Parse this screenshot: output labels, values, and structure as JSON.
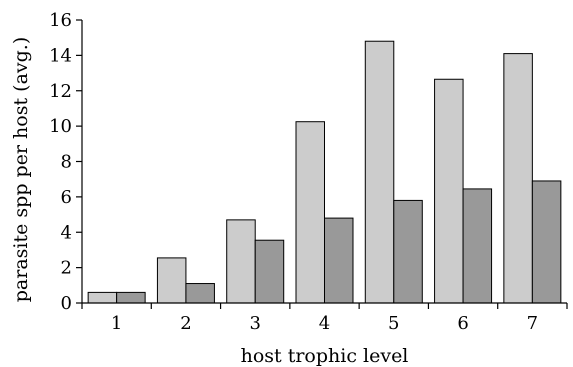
{
  "chart_data": {
    "type": "bar",
    "title": "",
    "xlabel": "host trophic level",
    "ylabel": "parasite spp per host (avg.)",
    "categories": [
      "1",
      "2",
      "3",
      "4",
      "5",
      "6",
      "7"
    ],
    "series": [
      {
        "values": [
          0.6,
          2.55,
          4.7,
          10.25,
          14.8,
          12.65,
          14.1
        ]
      },
      {
        "values": [
          0.6,
          1.1,
          3.55,
          4.8,
          5.8,
          6.45,
          6.9
        ]
      }
    ],
    "ylim": [
      0,
      16
    ],
    "yticks": [
      "0",
      "2",
      "4",
      "6",
      "8",
      "10",
      "12",
      "14",
      "16"
    ],
    "grid": false,
    "legend": "none",
    "colors": {
      "series_1": "#cccccc",
      "series_2": "#999999",
      "stroke": "#000000"
    }
  }
}
